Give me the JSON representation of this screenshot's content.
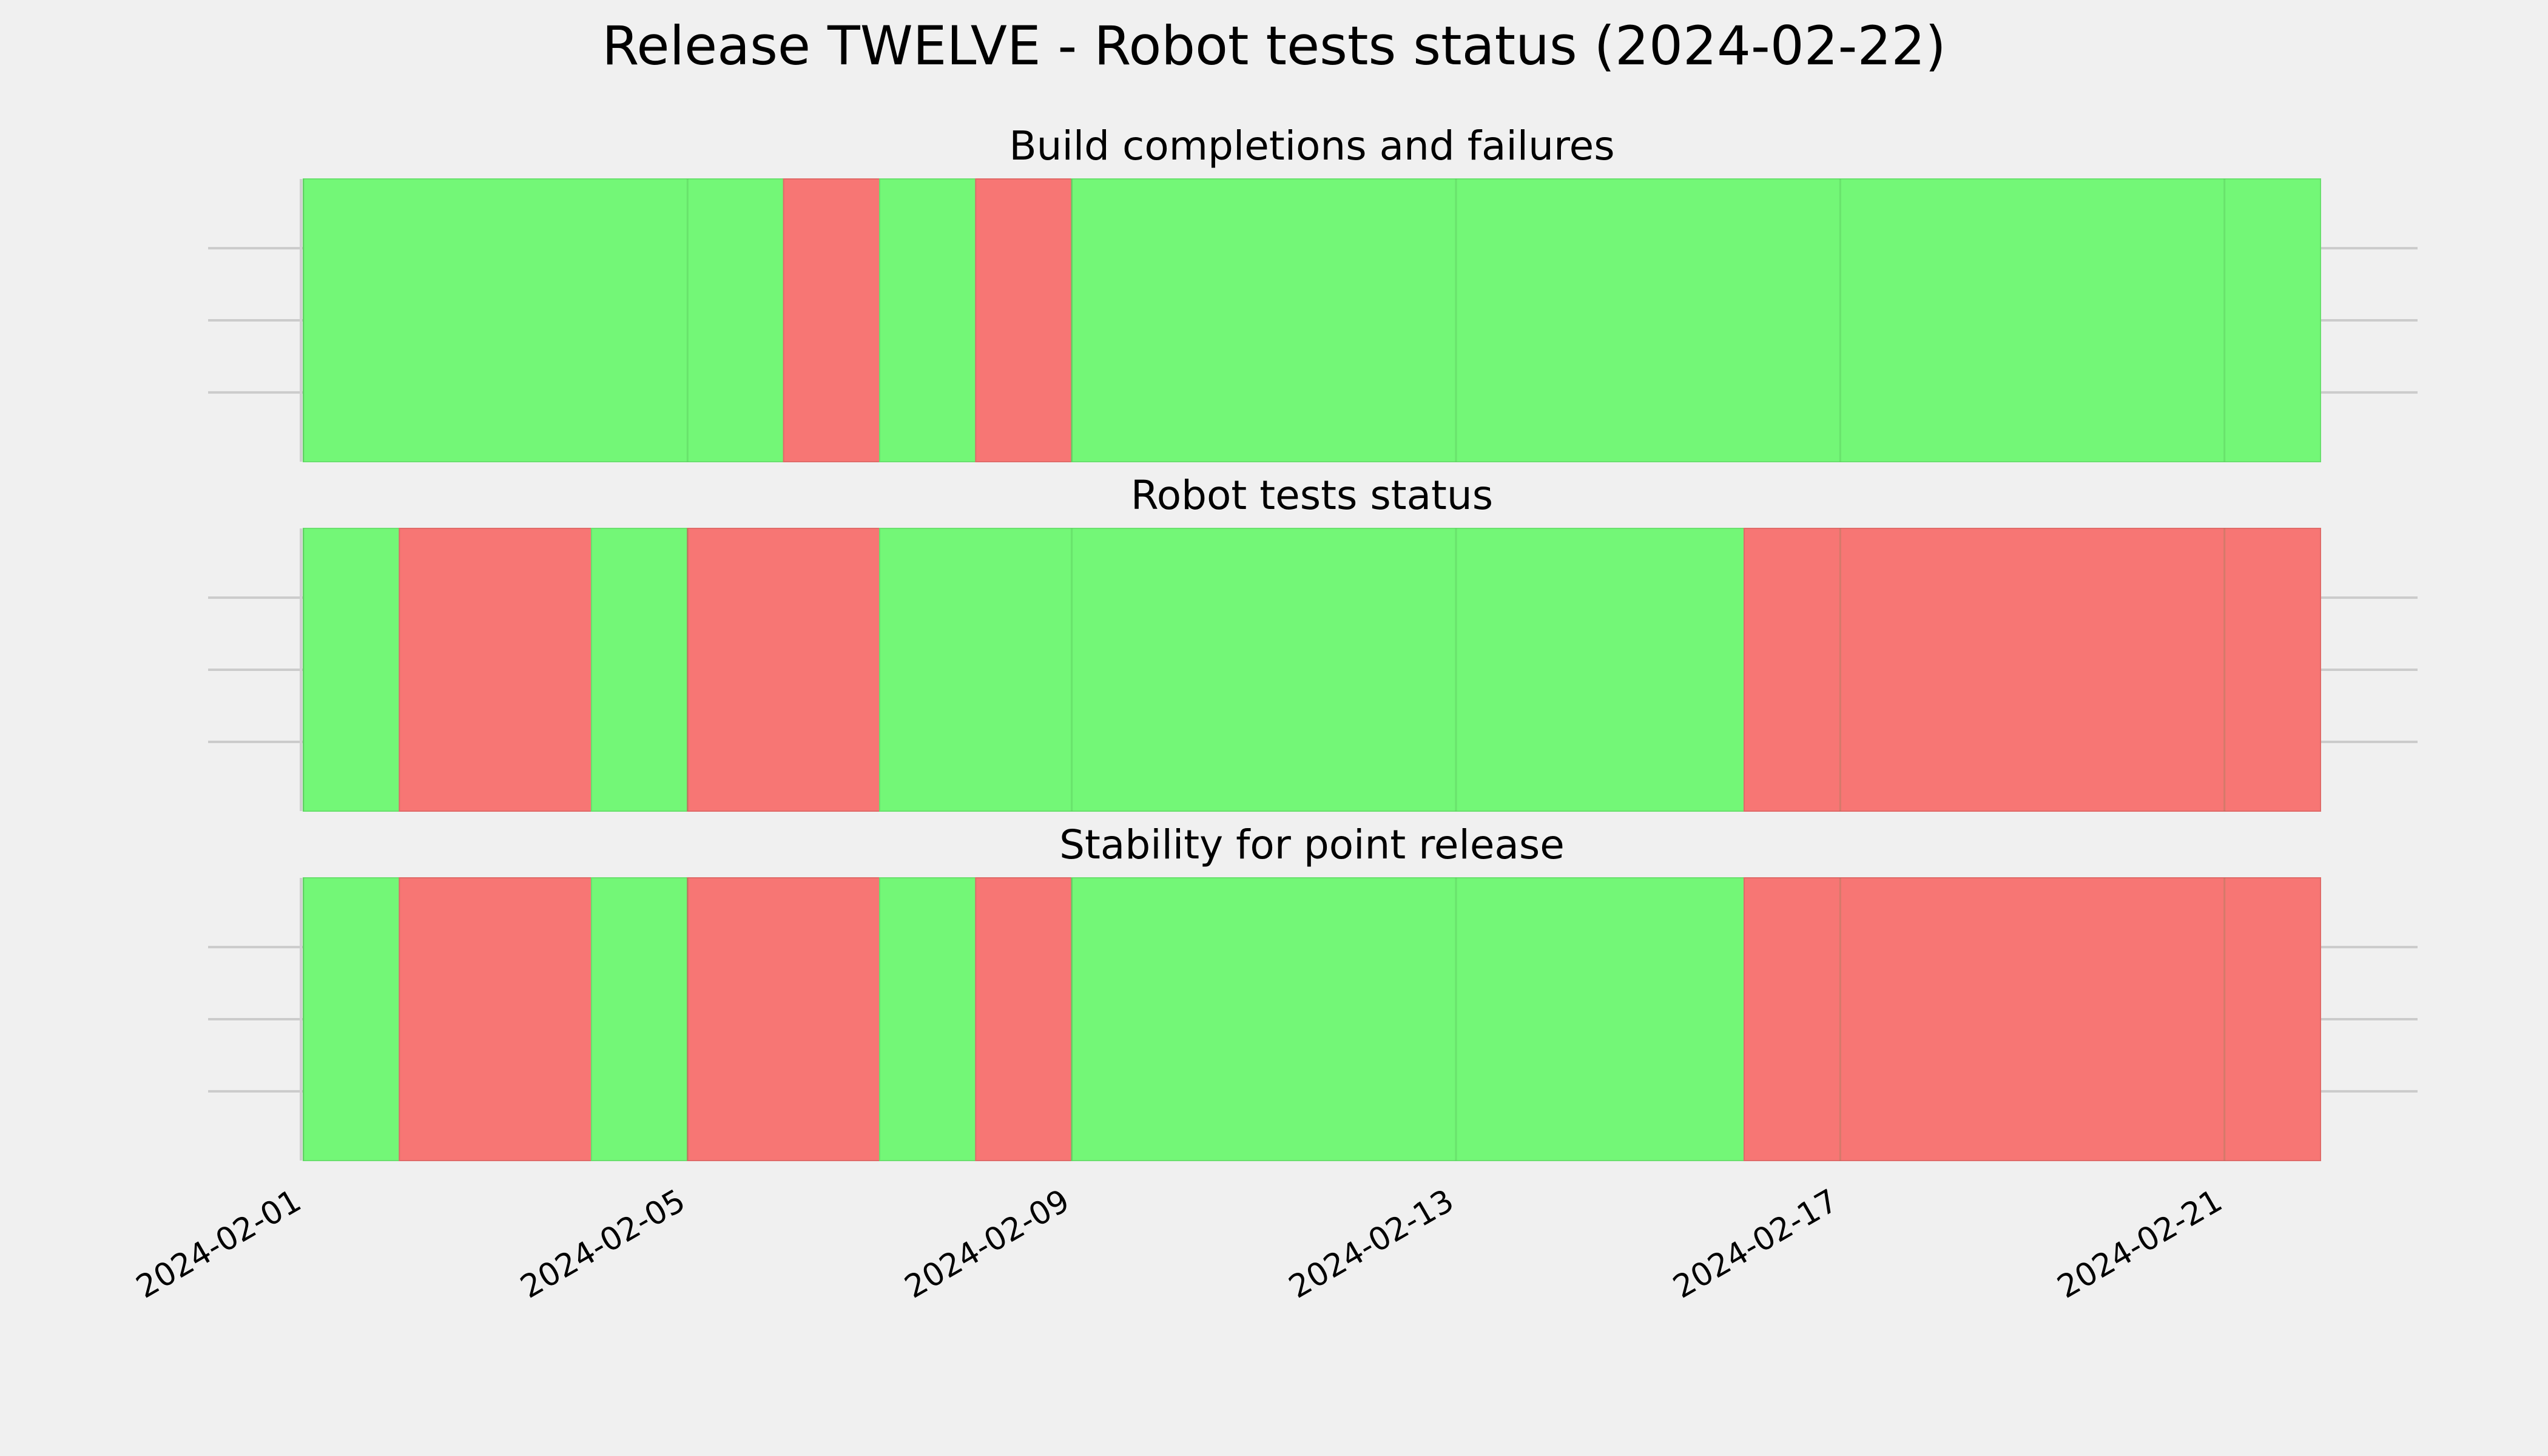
{
  "chart_data": {
    "type": "timeline",
    "title": "Release TWELVE - Robot tests status (2024-02-22)",
    "x_axis": {
      "start": "2024-02-01",
      "end": "2024-02-22",
      "ticks": [
        "2024-02-01",
        "2024-02-05",
        "2024-02-09",
        "2024-02-13",
        "2024-02-17",
        "2024-02-21"
      ]
    },
    "colors": {
      "pass": "#73f777",
      "fail": "#f77674",
      "background": "#f0f0f0",
      "grid": "#cbcbcb"
    },
    "panels": [
      {
        "subtitle": "Build completions and failures",
        "segments": [
          {
            "start": "2024-02-01",
            "end": "2024-02-06",
            "status": "pass"
          },
          {
            "start": "2024-02-06",
            "end": "2024-02-07",
            "status": "fail"
          },
          {
            "start": "2024-02-07",
            "end": "2024-02-08",
            "status": "pass"
          },
          {
            "start": "2024-02-08",
            "end": "2024-02-09",
            "status": "fail"
          },
          {
            "start": "2024-02-09",
            "end": "2024-02-22",
            "status": "pass"
          }
        ]
      },
      {
        "subtitle": "Robot tests status",
        "segments": [
          {
            "start": "2024-02-01",
            "end": "2024-02-02",
            "status": "pass"
          },
          {
            "start": "2024-02-02",
            "end": "2024-02-04",
            "status": "fail"
          },
          {
            "start": "2024-02-04",
            "end": "2024-02-05",
            "status": "pass"
          },
          {
            "start": "2024-02-05",
            "end": "2024-02-07",
            "status": "fail"
          },
          {
            "start": "2024-02-07",
            "end": "2024-02-16",
            "status": "pass"
          },
          {
            "start": "2024-02-16",
            "end": "2024-02-22",
            "status": "fail"
          }
        ]
      },
      {
        "subtitle": "Stability for point release",
        "segments": [
          {
            "start": "2024-02-01",
            "end": "2024-02-02",
            "status": "pass"
          },
          {
            "start": "2024-02-02",
            "end": "2024-02-04",
            "status": "fail"
          },
          {
            "start": "2024-02-04",
            "end": "2024-02-05",
            "status": "pass"
          },
          {
            "start": "2024-02-05",
            "end": "2024-02-07",
            "status": "fail"
          },
          {
            "start": "2024-02-07",
            "end": "2024-02-08",
            "status": "pass"
          },
          {
            "start": "2024-02-08",
            "end": "2024-02-09",
            "status": "fail"
          },
          {
            "start": "2024-02-09",
            "end": "2024-02-16",
            "status": "pass"
          },
          {
            "start": "2024-02-16",
            "end": "2024-02-22",
            "status": "fail"
          }
        ]
      }
    ]
  }
}
